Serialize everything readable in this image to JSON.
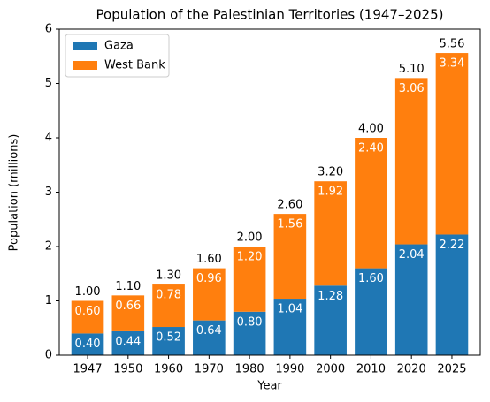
{
  "chart_data": {
    "type": "stacked-bar",
    "title": "Population of the Palestinian Territories (1947–2025)",
    "xlabel": "Year",
    "ylabel": "Population (millions)",
    "categories": [
      "1947",
      "1950",
      "1960",
      "1970",
      "1980",
      "1990",
      "2000",
      "2010",
      "2020",
      "2025"
    ],
    "series": [
      {
        "name": "Gaza",
        "color": "#1f77b4",
        "values": [
          0.4,
          0.44,
          0.52,
          0.64,
          0.8,
          1.04,
          1.28,
          1.6,
          2.04,
          2.22
        ],
        "value_labels": [
          "0.40",
          "0.44",
          "0.52",
          "0.64",
          "0.80",
          "1.04",
          "1.28",
          "1.60",
          "2.04",
          "2.22"
        ]
      },
      {
        "name": "West Bank",
        "color": "#ff7f0e",
        "values": [
          0.6,
          0.66,
          0.78,
          0.96,
          1.2,
          1.56,
          1.92,
          2.4,
          3.06,
          3.34
        ],
        "value_labels": [
          "0.60",
          "0.66",
          "0.78",
          "0.96",
          "1.20",
          "1.56",
          "1.92",
          "2.40",
          "3.06",
          "3.34"
        ]
      }
    ],
    "totals": {
      "values": [
        1,
        1.1,
        1.3,
        1.6,
        2,
        2.6,
        3.2,
        4,
        5.1,
        5.56
      ],
      "value_labels": [
        "1.00",
        "1.10",
        "1.30",
        "1.60",
        "2.00",
        "2.60",
        "3.20",
        "4.00",
        "5.10",
        "5.56"
      ]
    },
    "ylim": [
      0,
      6
    ],
    "yticks": [
      0,
      1,
      2,
      3,
      4,
      5,
      6
    ],
    "legend": "upper-left"
  }
}
